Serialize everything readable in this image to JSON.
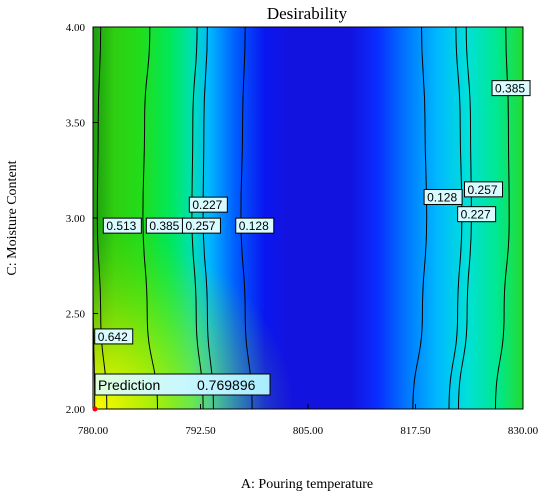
{
  "chart_data": {
    "type": "heatmap",
    "subtype": "contour",
    "title": "Desirability",
    "xlabel": "A: Pouring temperature",
    "ylabel": "C: Moisture Content",
    "xlim": [
      780,
      830
    ],
    "ylim": [
      2.0,
      4.0
    ],
    "x_ticks": [
      "780.00",
      "792.50",
      "805.00",
      "817.50",
      "830.00"
    ],
    "x_tick_values": [
      780,
      792.5,
      805,
      817.5,
      830
    ],
    "y_ticks": [
      "2.00",
      "2.50",
      "3.00",
      "3.50",
      "4.00"
    ],
    "y_tick_values": [
      2.0,
      2.5,
      3.0,
      3.5,
      4.0
    ],
    "colormap": [
      "#0000ff",
      "#00c8ff",
      "#00ff80",
      "#40ff00",
      "#ffff00",
      "#ff0000"
    ],
    "contours": [
      {
        "label": "0.642",
        "points": [
          [
            780.2,
            2.0
          ],
          [
            780.0,
            2.62
          ]
        ]
      },
      {
        "label": "0.513",
        "points": [
          [
            781.6,
            2.0
          ],
          [
            780.9,
            2.5
          ],
          [
            780.5,
            3.0
          ],
          [
            780.6,
            3.5
          ],
          [
            780.9,
            4.0
          ]
        ]
      },
      {
        "label": "0.385",
        "points": [
          [
            787.5,
            2.0
          ],
          [
            786.3,
            2.5
          ],
          [
            785.8,
            3.0
          ],
          [
            786.0,
            3.5
          ],
          [
            786.6,
            4.0
          ]
        ]
      },
      {
        "label": "0.257",
        "points": [
          [
            792.8,
            2.0
          ],
          [
            792.0,
            2.5
          ],
          [
            791.5,
            3.0
          ],
          [
            791.6,
            3.5
          ],
          [
            792.1,
            4.0
          ]
        ]
      },
      {
        "label": "0.227",
        "points": [
          [
            794.0,
            2.0
          ],
          [
            793.3,
            2.5
          ],
          [
            792.8,
            3.0
          ],
          [
            792.9,
            3.5
          ],
          [
            793.3,
            4.0
          ]
        ]
      },
      {
        "label": "0.128",
        "points": [
          [
            798.5,
            2.0
          ],
          [
            797.7,
            2.5
          ],
          [
            797.2,
            3.0
          ],
          [
            797.4,
            3.5
          ],
          [
            797.7,
            4.0
          ]
        ]
      },
      {
        "label": "0.128",
        "points": [
          [
            817.2,
            2.0
          ],
          [
            818.3,
            2.5
          ],
          [
            818.8,
            3.0
          ],
          [
            818.6,
            3.5
          ],
          [
            818.2,
            4.0
          ]
        ]
      },
      {
        "label": "0.227",
        "points": [
          [
            821.4,
            2.0
          ],
          [
            822.4,
            2.5
          ],
          [
            822.9,
            3.0
          ],
          [
            822.7,
            3.5
          ],
          [
            822.2,
            4.0
          ]
        ]
      },
      {
        "label": "0.257",
        "points": [
          [
            822.5,
            2.0
          ],
          [
            823.5,
            2.5
          ],
          [
            824.0,
            3.0
          ],
          [
            823.9,
            3.5
          ],
          [
            823.4,
            4.0
          ]
        ]
      },
      {
        "label": "0.385",
        "points": [
          [
            826.8,
            2.0
          ],
          [
            827.8,
            2.5
          ],
          [
            828.4,
            3.0
          ],
          [
            828.3,
            3.5
          ],
          [
            828.0,
            4.0
          ]
        ]
      }
    ],
    "contour_labels": [
      {
        "text": "0.513",
        "x": 781.2,
        "y": 2.96
      },
      {
        "text": "0.385",
        "x": 786.2,
        "y": 2.96
      },
      {
        "text": "0.257",
        "x": 790.4,
        "y": 2.96
      },
      {
        "text": "0.227",
        "x": 791.2,
        "y": 3.07
      },
      {
        "text": "0.128",
        "x": 796.6,
        "y": 2.96
      },
      {
        "text": "0.128",
        "x": 818.5,
        "y": 3.11
      },
      {
        "text": "0.257",
        "x": 823.2,
        "y": 3.15
      },
      {
        "text": "0.227",
        "x": 822.4,
        "y": 3.02
      },
      {
        "text": "0.385",
        "x": 826.4,
        "y": 3.68
      },
      {
        "text": "0.642",
        "x": 780.2,
        "y": 2.38
      }
    ],
    "prediction": {
      "label": "Prediction",
      "value": "0.769896",
      "x": 780.0,
      "y": 2.0
    }
  }
}
